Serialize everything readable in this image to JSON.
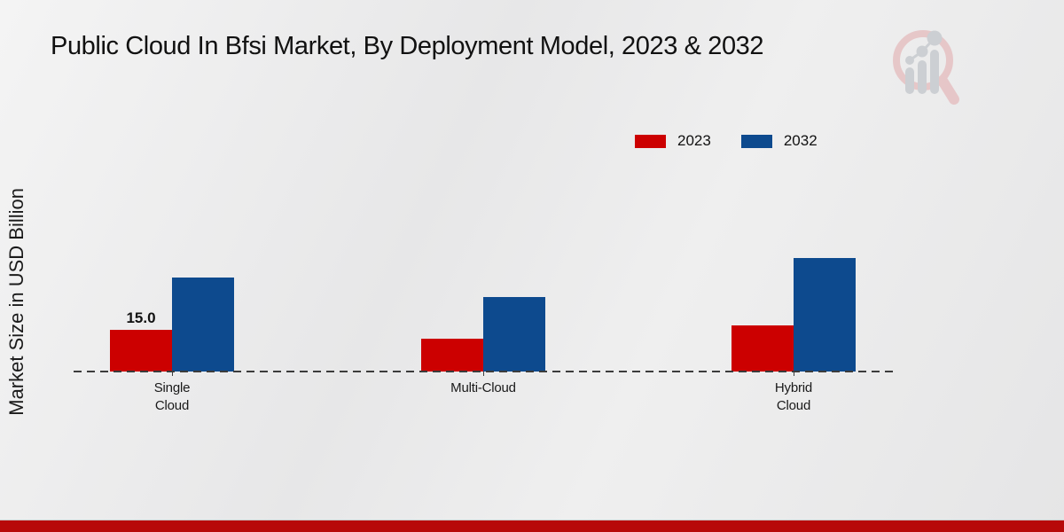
{
  "page": {
    "title": "Public Cloud In Bfsi Market, By Deployment Model, 2023 & 2032"
  },
  "colors": {
    "series_2023": "#cc0000",
    "series_2032": "#0d4a8e",
    "footer_bar": "#b70909",
    "baseline": "#3c3c3c",
    "text": "#1a1a1a"
  },
  "icons": {
    "watermark": "magnifier-bar-chart-logo"
  },
  "legend": [
    {
      "label": "2023",
      "color": "#cc0000"
    },
    {
      "label": "2032",
      "color": "#0d4a8e"
    }
  ],
  "chart_data": {
    "type": "bar",
    "title": "Public Cloud In Bfsi Market, By Deployment Model, 2023 & 2032",
    "xlabel": "",
    "ylabel": "Market Size in USD Billion",
    "categories": [
      "Single Cloud",
      "Multi-Cloud",
      "Hybrid Cloud"
    ],
    "category_tick_labels": [
      "Single\nCloud",
      "Multi-Cloud",
      "Hybrid\nCloud"
    ],
    "series": [
      {
        "name": "2023",
        "color": "#cc0000",
        "values": [
          15.0,
          11.7,
          16.7
        ]
      },
      {
        "name": "2032",
        "color": "#0d4a8e",
        "values": [
          33.9,
          27.0,
          41.1
        ]
      }
    ],
    "bar_labels": [
      {
        "series_index": 0,
        "category_index": 0,
        "text": "15.0"
      }
    ],
    "ylim": [
      0,
      51
    ],
    "grid": false,
    "legend_position": "upper right",
    "baseline_style": "dashed"
  }
}
